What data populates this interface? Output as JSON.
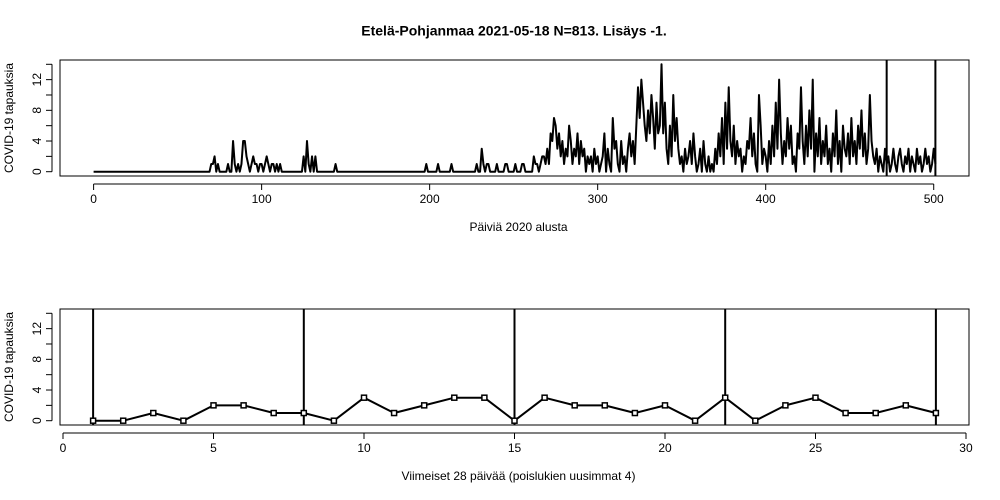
{
  "chart_data": [
    {
      "type": "line",
      "title": "Etelä-Pohjanmaa 2021-05-18 N=813. Lisäys -1.",
      "xlabel": "Päiviä 2020 alusta",
      "ylabel": "COVID-19 tapauksia",
      "color": "#000000",
      "markers": false,
      "x": [
        0,
        69,
        70,
        71,
        72,
        73,
        74,
        75,
        76,
        77,
        78,
        79,
        80,
        81,
        82,
        83,
        84,
        85,
        86,
        87,
        88,
        89,
        90,
        91,
        92,
        93,
        94,
        95,
        96,
        97,
        98,
        99,
        100,
        101,
        102,
        103,
        104,
        105,
        106,
        107,
        108,
        109,
        110,
        111,
        112,
        124,
        125,
        126,
        127,
        128,
        129,
        130,
        131,
        132,
        133,
        134,
        143,
        144,
        145,
        146,
        197,
        198,
        199,
        200,
        204,
        205,
        206,
        207,
        212,
        213,
        214,
        215,
        227,
        228,
        229,
        230,
        231,
        232,
        233,
        234,
        235,
        236,
        237,
        238,
        239,
        240,
        241,
        242,
        243,
        244,
        245,
        246,
        247,
        248,
        249,
        250,
        251,
        252,
        253,
        254,
        255,
        256,
        257,
        258,
        259,
        260,
        261,
        262,
        263,
        264,
        265,
        266,
        267,
        268,
        269,
        270,
        271,
        272,
        273,
        274,
        275,
        276,
        277,
        278,
        279,
        280,
        281,
        282,
        283,
        284,
        285,
        286,
        287,
        288,
        289,
        290,
        291,
        292,
        293,
        294,
        295,
        296,
        297,
        298,
        299,
        300,
        301,
        302,
        303,
        304,
        305,
        306,
        307,
        308,
        309,
        310,
        311,
        312,
        313,
        314,
        315,
        316,
        317,
        318,
        319,
        320,
        321,
        322,
        323,
        324,
        325,
        326,
        327,
        328,
        329,
        330,
        331,
        332,
        333,
        334,
        335,
        336,
        337,
        338,
        339,
        340,
        341,
        342,
        343,
        344,
        345,
        346,
        347,
        348,
        349,
        350,
        351,
        352,
        353,
        354,
        355,
        356,
        357,
        358,
        359,
        360,
        361,
        362,
        363,
        364,
        365,
        366,
        367,
        368,
        369,
        370,
        371,
        372,
        373,
        374,
        375,
        376,
        377,
        378,
        379,
        380,
        381,
        382,
        383,
        384,
        385,
        386,
        387,
        388,
        389,
        390,
        391,
        392,
        393,
        394,
        395,
        396,
        397,
        398,
        399,
        400,
        401,
        402,
        403,
        404,
        405,
        406,
        407,
        408,
        409,
        410,
        411,
        412,
        413,
        414,
        415,
        416,
        417,
        418,
        419,
        420,
        421,
        422,
        423,
        424,
        425,
        426,
        427,
        428,
        429,
        430,
        431,
        432,
        433,
        434,
        435,
        436,
        437,
        438,
        439,
        440,
        441,
        442,
        443,
        444,
        445,
        446,
        447,
        448,
        449,
        450,
        451,
        452,
        453,
        454,
        455,
        456,
        457,
        458,
        459,
        460,
        461,
        462,
        463,
        464,
        465,
        466,
        467,
        468,
        469,
        470,
        471,
        472,
        473,
        474,
        475,
        476,
        477,
        478,
        479,
        480,
        481,
        482,
        483,
        484,
        485,
        486,
        487,
        488,
        489,
        490,
        491,
        492,
        493,
        494,
        495,
        496,
        497,
        498,
        499,
        500,
        501
      ],
      "values": [
        0,
        0,
        1,
        1,
        2,
        0,
        1,
        0,
        0,
        0,
        0,
        0,
        1,
        0,
        0,
        4,
        1,
        0,
        1,
        0,
        1,
        4,
        4,
        2,
        1,
        0,
        1,
        2,
        1,
        1,
        0,
        1,
        1,
        0,
        1,
        2,
        1,
        0,
        1,
        1,
        0,
        1,
        0,
        1,
        0,
        0,
        2,
        0,
        4,
        1,
        0,
        2,
        0,
        2,
        0,
        0,
        0,
        1,
        0,
        0,
        0,
        1,
        0,
        0,
        0,
        1,
        0,
        0,
        0,
        1,
        0,
        0,
        0,
        1,
        0,
        0,
        3,
        1,
        0,
        1,
        1,
        0,
        0,
        0,
        0,
        1,
        0,
        0,
        0,
        0,
        1,
        1,
        0,
        0,
        0,
        0,
        1,
        0,
        0,
        0,
        1,
        1,
        0,
        0,
        0,
        0,
        0,
        2,
        1,
        1,
        0,
        1,
        2,
        2,
        1,
        3,
        1,
        5,
        4,
        7,
        6,
        3,
        5,
        2,
        4,
        1,
        3,
        2,
        6,
        4,
        1,
        3,
        2,
        5,
        1,
        4,
        2,
        3,
        0,
        2,
        1,
        2,
        0,
        3,
        1,
        2,
        0,
        1,
        2,
        5,
        0,
        3,
        1,
        0,
        7,
        3,
        4,
        1,
        0,
        4,
        1,
        2,
        0,
        3,
        5,
        2,
        4,
        1,
        6,
        11,
        7,
        12,
        9,
        6,
        4,
        8,
        5,
        10,
        7,
        3,
        9,
        5,
        6,
        14,
        5,
        9,
        3,
        1,
        6,
        2,
        10,
        4,
        7,
        3,
        1,
        2,
        0,
        3,
        1,
        2,
        4,
        1,
        5,
        2,
        0,
        1,
        3,
        0,
        4,
        1,
        0,
        2,
        0,
        1,
        0,
        3,
        1,
        5,
        2,
        7,
        1,
        9,
        3,
        11,
        4,
        2,
        6,
        1,
        4,
        2,
        3,
        0,
        2,
        1,
        4,
        3,
        7,
        2,
        5,
        1,
        0,
        10,
        6,
        1,
        3,
        2,
        0,
        4,
        1,
        6,
        2,
        9,
        3,
        12,
        5,
        1,
        4,
        2,
        7,
        3,
        6,
        1,
        2,
        0,
        5,
        3,
        11,
        4,
        1,
        6,
        2,
        8,
        3,
        12,
        0,
        5,
        2,
        7,
        1,
        4,
        2,
        6,
        1,
        3,
        0,
        5,
        2,
        8,
        1,
        4,
        0,
        6,
        3,
        2,
        5,
        1,
        7,
        2,
        4,
        1,
        6,
        3,
        8,
        2,
        5,
        1,
        3,
        10,
        4,
        2,
        1,
        3,
        0,
        2,
        1,
        0,
        3,
        1,
        2,
        0,
        1,
        3,
        1,
        0,
        2,
        3,
        1,
        0,
        2,
        1,
        3,
        0,
        2,
        1,
        0,
        3,
        1,
        2,
        0,
        1,
        3,
        1,
        2,
        0,
        1,
        3,
        1
      ],
      "vlines": [
        472,
        501
      ],
      "xlim": [
        -20,
        521
      ],
      "ylim": [
        -0.56,
        14.56
      ],
      "xticks": [
        0,
        100,
        200,
        300,
        400,
        500
      ],
      "yticks": [
        0,
        4,
        8,
        12
      ],
      "yminor": [
        2,
        6,
        10,
        14
      ]
    },
    {
      "type": "line",
      "xlabel": "Viimeiset 28 päivää (poislukien uusimmat 4)",
      "ylabel": "COVID-19 tapauksia",
      "color": "#000000",
      "markers": true,
      "x": [
        1,
        2,
        3,
        4,
        5,
        6,
        7,
        8,
        9,
        10,
        11,
        12,
        13,
        14,
        15,
        16,
        17,
        18,
        19,
        20,
        21,
        22,
        23,
        24,
        25,
        26,
        27,
        28,
        29
      ],
      "values": [
        0,
        0,
        1,
        0,
        2,
        2,
        1,
        1,
        0,
        3,
        1,
        2,
        3,
        3,
        0,
        3,
        2,
        2,
        1,
        2,
        0,
        3,
        0,
        2,
        3,
        1,
        1,
        2,
        1
      ],
      "vlines": [
        1,
        8,
        15,
        22,
        29
      ],
      "xlim": [
        -0.1,
        30.1
      ],
      "ylim": [
        -0.56,
        14.56
      ],
      "xticks": [
        0,
        5,
        10,
        15,
        20,
        25,
        30
      ],
      "yticks": [
        0,
        4,
        8,
        12
      ],
      "yminor": [
        2,
        6,
        10,
        14
      ]
    }
  ]
}
